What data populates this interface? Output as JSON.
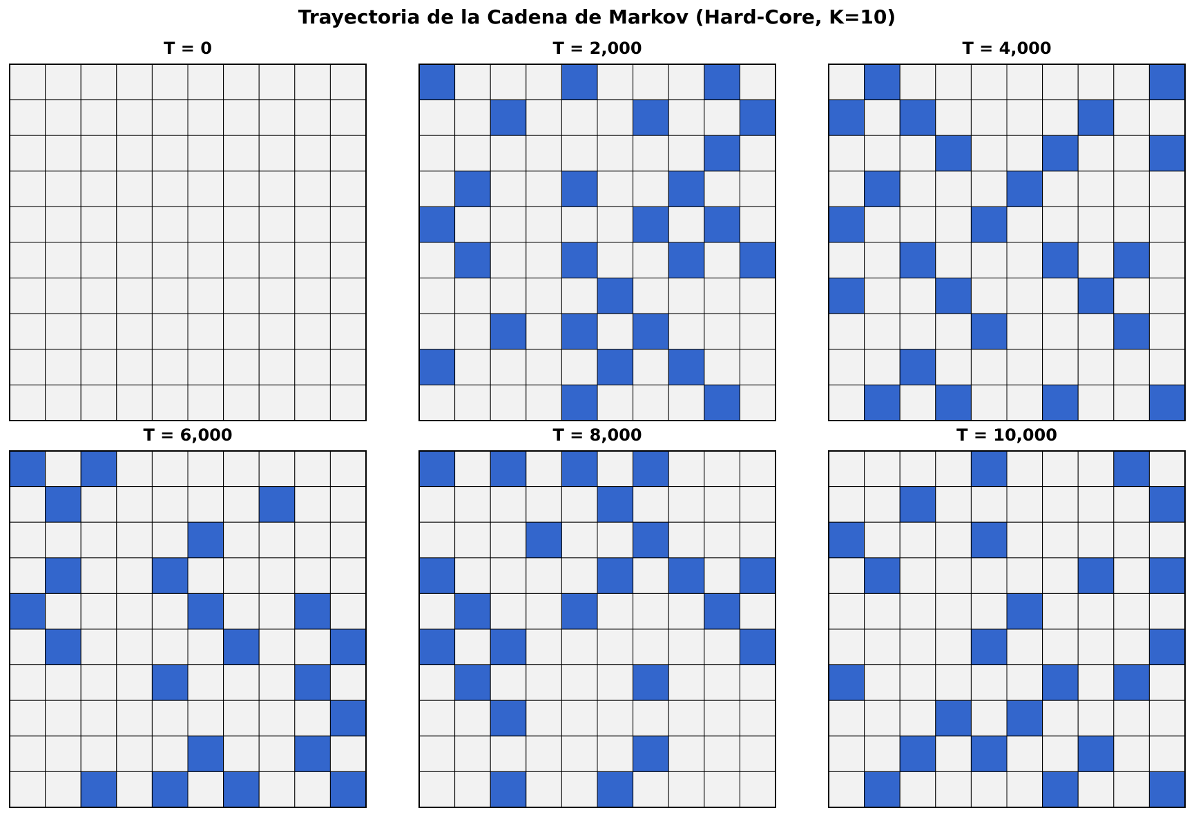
{
  "title": "Trayectoria de la Cadena de Markov (Hard-Core, K=10)",
  "colors": {
    "occupied": "#3366cc",
    "empty": "#f2f2f2",
    "line": "#000000",
    "background": "#ffffff"
  },
  "chart_data": {
    "type": "heatmap",
    "grid_size": 10,
    "values_legend": {
      "0": "empty",
      "1": "occupied"
    },
    "panels": [
      {
        "title": "T = 0",
        "grid": [
          [
            0,
            0,
            0,
            0,
            0,
            0,
            0,
            0,
            0,
            0
          ],
          [
            0,
            0,
            0,
            0,
            0,
            0,
            0,
            0,
            0,
            0
          ],
          [
            0,
            0,
            0,
            0,
            0,
            0,
            0,
            0,
            0,
            0
          ],
          [
            0,
            0,
            0,
            0,
            0,
            0,
            0,
            0,
            0,
            0
          ],
          [
            0,
            0,
            0,
            0,
            0,
            0,
            0,
            0,
            0,
            0
          ],
          [
            0,
            0,
            0,
            0,
            0,
            0,
            0,
            0,
            0,
            0
          ],
          [
            0,
            0,
            0,
            0,
            0,
            0,
            0,
            0,
            0,
            0
          ],
          [
            0,
            0,
            0,
            0,
            0,
            0,
            0,
            0,
            0,
            0
          ],
          [
            0,
            0,
            0,
            0,
            0,
            0,
            0,
            0,
            0,
            0
          ],
          [
            0,
            0,
            0,
            0,
            0,
            0,
            0,
            0,
            0,
            0
          ]
        ]
      },
      {
        "title": "T = 2,000",
        "grid": [
          [
            1,
            0,
            0,
            0,
            1,
            0,
            0,
            0,
            1,
            0
          ],
          [
            0,
            0,
            1,
            0,
            0,
            0,
            1,
            0,
            0,
            1
          ],
          [
            0,
            0,
            0,
            0,
            0,
            0,
            0,
            0,
            1,
            0
          ],
          [
            0,
            1,
            0,
            0,
            1,
            0,
            0,
            1,
            0,
            0
          ],
          [
            1,
            0,
            0,
            0,
            0,
            0,
            1,
            0,
            1,
            0
          ],
          [
            0,
            1,
            0,
            0,
            1,
            0,
            0,
            1,
            0,
            1
          ],
          [
            0,
            0,
            0,
            0,
            0,
            1,
            0,
            0,
            0,
            0
          ],
          [
            0,
            0,
            1,
            0,
            1,
            0,
            1,
            0,
            0,
            0
          ],
          [
            1,
            0,
            0,
            0,
            0,
            1,
            0,
            1,
            0,
            0
          ],
          [
            0,
            0,
            0,
            0,
            1,
            0,
            0,
            0,
            1,
            0
          ]
        ]
      },
      {
        "title": "T = 4,000",
        "grid": [
          [
            0,
            1,
            0,
            0,
            0,
            0,
            0,
            0,
            0,
            1
          ],
          [
            1,
            0,
            1,
            0,
            0,
            0,
            0,
            1,
            0,
            0
          ],
          [
            0,
            0,
            0,
            1,
            0,
            0,
            1,
            0,
            0,
            1
          ],
          [
            0,
            1,
            0,
            0,
            0,
            1,
            0,
            0,
            0,
            0
          ],
          [
            1,
            0,
            0,
            0,
            1,
            0,
            0,
            0,
            0,
            0
          ],
          [
            0,
            0,
            1,
            0,
            0,
            0,
            1,
            0,
            1,
            0
          ],
          [
            1,
            0,
            0,
            1,
            0,
            0,
            0,
            1,
            0,
            0
          ],
          [
            0,
            0,
            0,
            0,
            1,
            0,
            0,
            0,
            1,
            0
          ],
          [
            0,
            0,
            1,
            0,
            0,
            0,
            0,
            0,
            0,
            0
          ],
          [
            0,
            1,
            0,
            1,
            0,
            0,
            1,
            0,
            0,
            1
          ]
        ]
      },
      {
        "title": "T = 6,000",
        "grid": [
          [
            1,
            0,
            1,
            0,
            0,
            0,
            0,
            0,
            0,
            0
          ],
          [
            0,
            1,
            0,
            0,
            0,
            0,
            0,
            1,
            0,
            0
          ],
          [
            0,
            0,
            0,
            0,
            0,
            1,
            0,
            0,
            0,
            0
          ],
          [
            0,
            1,
            0,
            0,
            1,
            0,
            0,
            0,
            0,
            0
          ],
          [
            1,
            0,
            0,
            0,
            0,
            1,
            0,
            0,
            1,
            0
          ],
          [
            0,
            1,
            0,
            0,
            0,
            0,
            1,
            0,
            0,
            1
          ],
          [
            0,
            0,
            0,
            0,
            1,
            0,
            0,
            0,
            1,
            0
          ],
          [
            0,
            0,
            0,
            0,
            0,
            0,
            0,
            0,
            0,
            1
          ],
          [
            0,
            0,
            0,
            0,
            0,
            1,
            0,
            0,
            1,
            0
          ],
          [
            0,
            0,
            1,
            0,
            1,
            0,
            1,
            0,
            0,
            1
          ]
        ]
      },
      {
        "title": "T = 8,000",
        "grid": [
          [
            1,
            0,
            1,
            0,
            1,
            0,
            1,
            0,
            0,
            0
          ],
          [
            0,
            0,
            0,
            0,
            0,
            1,
            0,
            0,
            0,
            0
          ],
          [
            0,
            0,
            0,
            1,
            0,
            0,
            1,
            0,
            0,
            0
          ],
          [
            1,
            0,
            0,
            0,
            0,
            1,
            0,
            1,
            0,
            1
          ],
          [
            0,
            1,
            0,
            0,
            1,
            0,
            0,
            0,
            1,
            0
          ],
          [
            1,
            0,
            1,
            0,
            0,
            0,
            0,
            0,
            0,
            1
          ],
          [
            0,
            1,
            0,
            0,
            0,
            0,
            1,
            0,
            0,
            0
          ],
          [
            0,
            0,
            1,
            0,
            0,
            0,
            0,
            0,
            0,
            0
          ],
          [
            0,
            0,
            0,
            0,
            0,
            0,
            1,
            0,
            0,
            0
          ],
          [
            0,
            0,
            1,
            0,
            0,
            1,
            0,
            0,
            0,
            0
          ]
        ]
      },
      {
        "title": "T = 10,000",
        "grid": [
          [
            0,
            0,
            0,
            0,
            1,
            0,
            0,
            0,
            1,
            0
          ],
          [
            0,
            0,
            1,
            0,
            0,
            0,
            0,
            0,
            0,
            1
          ],
          [
            1,
            0,
            0,
            0,
            1,
            0,
            0,
            0,
            0,
            0
          ],
          [
            0,
            1,
            0,
            0,
            0,
            0,
            0,
            1,
            0,
            1
          ],
          [
            0,
            0,
            0,
            0,
            0,
            1,
            0,
            0,
            0,
            0
          ],
          [
            0,
            0,
            0,
            0,
            1,
            0,
            0,
            0,
            0,
            1
          ],
          [
            1,
            0,
            0,
            0,
            0,
            0,
            1,
            0,
            1,
            0
          ],
          [
            0,
            0,
            0,
            1,
            0,
            1,
            0,
            0,
            0,
            0
          ],
          [
            0,
            0,
            1,
            0,
            1,
            0,
            0,
            1,
            0,
            0
          ],
          [
            0,
            1,
            0,
            0,
            0,
            0,
            1,
            0,
            0,
            1
          ]
        ]
      }
    ]
  }
}
